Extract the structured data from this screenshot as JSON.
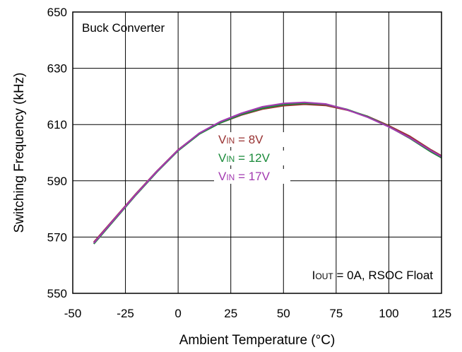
{
  "chart_data": {
    "type": "line",
    "title": "",
    "xlabel": "Ambient Temperature (°C)",
    "ylabel": "Switching Frequency (kHz)",
    "xlim": [
      -50,
      125
    ],
    "ylim": [
      550,
      650
    ],
    "xticks": [
      -50,
      -25,
      0,
      25,
      50,
      75,
      100,
      125
    ],
    "yticks": [
      550,
      570,
      590,
      610,
      630,
      650
    ],
    "grid": true,
    "annotations": {
      "top_left": "Buck Converter",
      "bottom_right_sub": "OUT",
      "bottom_right_rest": " = 0A, RSOC Float",
      "bottom_right_prefix": "I"
    },
    "x": [
      -40,
      -30,
      -20,
      -10,
      0,
      10,
      20,
      30,
      40,
      50,
      60,
      70,
      80,
      90,
      100,
      110,
      120,
      125
    ],
    "series": [
      {
        "name": "V",
        "sub": "IN",
        "rest": " = 8V",
        "color": "#993333",
        "values": [
          568.2,
          576.8,
          585.4,
          593.5,
          601.0,
          606.8,
          610.6,
          613.4,
          615.5,
          616.7,
          617.2,
          616.8,
          615.2,
          612.9,
          609.6,
          605.8,
          601.0,
          598.9
        ]
      },
      {
        "name": "V",
        "sub": "IN",
        "rest": " = 12V",
        "color": "#1a8a3a",
        "values": [
          567.6,
          576.3,
          585.0,
          593.2,
          600.7,
          606.6,
          610.6,
          613.6,
          615.8,
          617.1,
          617.6,
          617.2,
          615.4,
          612.8,
          609.3,
          605.1,
          600.3,
          598.2
        ]
      },
      {
        "name": "V",
        "sub": "IN",
        "rest": " = 17V",
        "color": "#a23ab0",
        "values": [
          567.9,
          576.6,
          585.2,
          593.4,
          600.9,
          606.9,
          611.0,
          614.0,
          616.3,
          617.5,
          617.9,
          617.3,
          615.3,
          612.6,
          609.2,
          605.3,
          600.7,
          598.6
        ]
      }
    ]
  }
}
